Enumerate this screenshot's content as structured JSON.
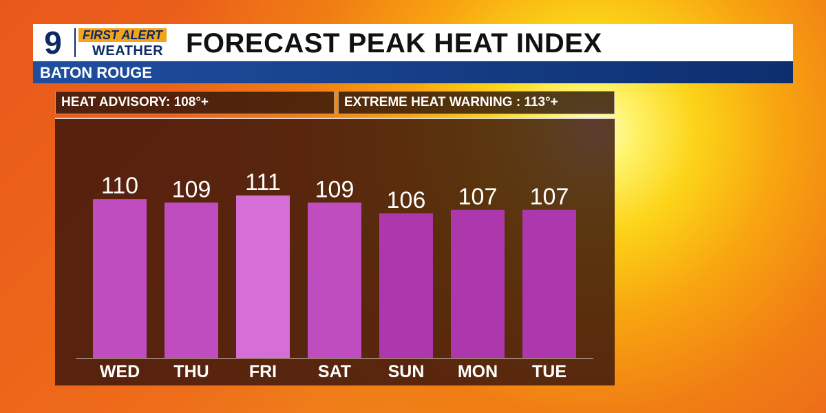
{
  "logo": {
    "number": "9",
    "line1": "FIRST ALERT",
    "line2": "WEATHER"
  },
  "headline": "FORECAST PEAK HEAT INDEX",
  "location": "BATON ROUGE",
  "thresholds": {
    "advisory": "HEAT ADVISORY: 108°+",
    "warning": "EXTREME HEAT WARNING : 113°+"
  },
  "colors": {
    "bar_high": "#d56ed6",
    "bar_mid": "#bf4dbf",
    "bar_low": "#ad38ad"
  },
  "chart_data": {
    "type": "bar",
    "title": "FORECAST PEAK HEAT INDEX",
    "categories": [
      "WED",
      "THU",
      "FRI",
      "SAT",
      "SUN",
      "MON",
      "TUE"
    ],
    "values": [
      110,
      109,
      111,
      109,
      106,
      107,
      107
    ],
    "data_labels": [
      "110",
      "109",
      "111",
      "109",
      "106",
      "107",
      "107"
    ],
    "xlabel": "",
    "ylabel": "",
    "grid": false
  }
}
